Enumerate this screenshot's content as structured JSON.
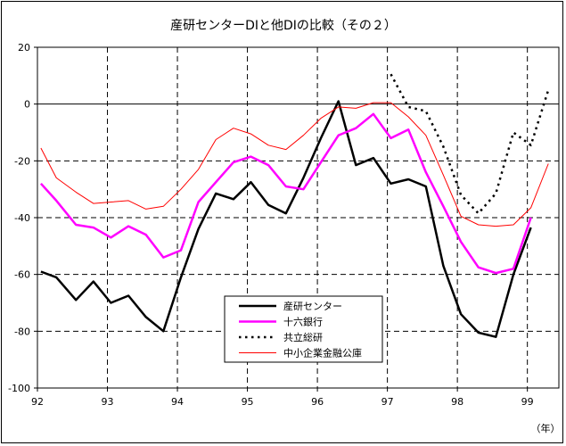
{
  "chart_data": {
    "type": "line",
    "title": "産研センターDIと他DIの比較（その２）",
    "xlabel": "（年）",
    "ylabel": "",
    "ylim": [
      -100,
      20
    ],
    "yticks": [
      20,
      0,
      -20,
      -40,
      -60,
      -80,
      -100
    ],
    "xlim": [
      92.0,
      99.45
    ],
    "xticks": [
      92,
      93,
      94,
      95,
      96,
      97,
      98,
      99
    ],
    "xtick_labels": [
      "92",
      "93",
      "94",
      "95",
      "96",
      "97",
      "98",
      "99"
    ],
    "grid": "vertical dashed at years; horizontal dashed below zero; solid zero line",
    "legend_position": "bottom-center",
    "series": [
      {
        "name": "産研センター",
        "color": "#000000",
        "style": "solid-thick",
        "points": [
          [
            92.05,
            -59
          ],
          [
            92.27,
            -61
          ],
          [
            92.55,
            -69
          ],
          [
            92.8,
            -62.5
          ],
          [
            93.05,
            -70
          ],
          [
            93.3,
            -67.5
          ],
          [
            93.55,
            -75
          ],
          [
            93.8,
            -80
          ],
          [
            94.05,
            -61
          ],
          [
            94.3,
            -44
          ],
          [
            94.55,
            -31.5
          ],
          [
            94.8,
            -33.5
          ],
          [
            95.05,
            -27.5
          ],
          [
            95.3,
            -35.5
          ],
          [
            95.55,
            -38.5
          ],
          [
            95.8,
            -26
          ],
          [
            96.05,
            -12
          ],
          [
            96.3,
            1
          ],
          [
            96.55,
            -21.5
          ],
          [
            96.8,
            -19
          ],
          [
            97.05,
            -28
          ],
          [
            97.3,
            -26.5
          ],
          [
            97.55,
            -29
          ],
          [
            97.8,
            -57
          ],
          [
            98.05,
            -74
          ],
          [
            98.3,
            -80.5
          ],
          [
            98.55,
            -82
          ],
          [
            98.8,
            -60
          ],
          [
            99.05,
            -43.5
          ]
        ]
      },
      {
        "name": "十六銀行",
        "color": "#ff00ff",
        "style": "solid-thick",
        "points": [
          [
            92.05,
            -28
          ],
          [
            92.27,
            -34
          ],
          [
            92.55,
            -42.5
          ],
          [
            92.8,
            -43.5
          ],
          [
            93.05,
            -47
          ],
          [
            93.3,
            -43
          ],
          [
            93.55,
            -46
          ],
          [
            93.8,
            -54
          ],
          [
            94.05,
            -51.5
          ],
          [
            94.3,
            -34.5
          ],
          [
            94.55,
            -27.5
          ],
          [
            94.8,
            -20.5
          ],
          [
            95.05,
            -18.5
          ],
          [
            95.3,
            -21.5
          ],
          [
            95.55,
            -29
          ],
          [
            95.8,
            -30
          ],
          [
            96.05,
            -20.5
          ],
          [
            96.3,
            -11
          ],
          [
            96.55,
            -8.5
          ],
          [
            96.8,
            -3.5
          ],
          [
            97.05,
            -12
          ],
          [
            97.3,
            -9
          ],
          [
            97.55,
            -24
          ],
          [
            97.8,
            -36
          ],
          [
            98.05,
            -48.5
          ],
          [
            98.3,
            -57.5
          ],
          [
            98.55,
            -59.5
          ],
          [
            98.8,
            -58
          ],
          [
            99.05,
            -40
          ]
        ]
      },
      {
        "name": "共立総研",
        "color": "#000000",
        "style": "dotted",
        "points": [
          [
            97.05,
            10.5
          ],
          [
            97.3,
            -1
          ],
          [
            97.55,
            -2.5
          ],
          [
            97.8,
            -15
          ],
          [
            98.05,
            -32
          ],
          [
            98.3,
            -38.5
          ],
          [
            98.55,
            -31.5
          ],
          [
            98.8,
            -10
          ],
          [
            98.97,
            -13
          ],
          [
            99.05,
            -14.5
          ],
          [
            99.3,
            5
          ]
        ]
      },
      {
        "name": "中小企業金融公庫",
        "color": "#ff0000",
        "style": "solid-thin",
        "points": [
          [
            92.05,
            -15.5
          ],
          [
            92.27,
            -26
          ],
          [
            92.55,
            -31
          ],
          [
            92.8,
            -35
          ],
          [
            93.05,
            -34.5
          ],
          [
            93.3,
            -34
          ],
          [
            93.55,
            -37
          ],
          [
            93.8,
            -36
          ],
          [
            94.05,
            -30
          ],
          [
            94.3,
            -23
          ],
          [
            94.55,
            -12.5
          ],
          [
            94.8,
            -8.5
          ],
          [
            95.05,
            -10.5
          ],
          [
            95.3,
            -14.5
          ],
          [
            95.55,
            -16
          ],
          [
            95.8,
            -11
          ],
          [
            96.05,
            -5
          ],
          [
            96.3,
            -1
          ],
          [
            96.55,
            -1.5
          ],
          [
            96.8,
            0.5
          ],
          [
            97.05,
            0.5
          ],
          [
            97.3,
            -4.5
          ],
          [
            97.55,
            -11
          ],
          [
            97.8,
            -25
          ],
          [
            98.05,
            -39.5
          ],
          [
            98.3,
            -42.5
          ],
          [
            98.55,
            -43
          ],
          [
            98.8,
            -42.5
          ],
          [
            99.05,
            -36.5
          ],
          [
            99.3,
            -21
          ]
        ]
      }
    ]
  }
}
